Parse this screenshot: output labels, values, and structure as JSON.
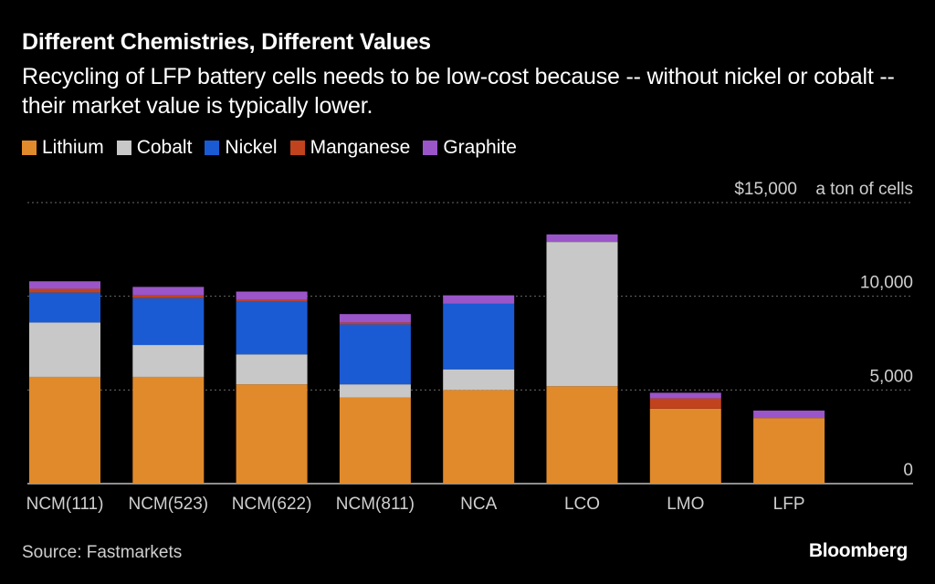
{
  "header": {
    "title": "Different Chemistries, Different Values",
    "subtitle": "Recycling of LFP battery cells needs to be low-cost because -- without nickel or cobalt -- their market value is typically lower."
  },
  "legend": [
    {
      "label": "Lithium",
      "color": "#e08a2c"
    },
    {
      "label": "Cobalt",
      "color": "#c8c8c8"
    },
    {
      "label": "Nickel",
      "color": "#1a5bd4"
    },
    {
      "label": "Manganese",
      "color": "#c0431e"
    },
    {
      "label": "Graphite",
      "color": "#9a55c8"
    }
  ],
  "chart_data": {
    "type": "bar",
    "stacked": true,
    "title": "Different Chemistries, Different Values",
    "unit_label": "a ton of cells",
    "categories": [
      "NCM(111)",
      "NCM(523)",
      "NCM(622)",
      "NCM(811)",
      "NCA",
      "LCO",
      "LMO",
      "LFP"
    ],
    "series": [
      {
        "name": "Lithium",
        "color": "#e08a2c",
        "values": [
          5700,
          5700,
          5300,
          4600,
          5000,
          5200,
          4000,
          3500
        ]
      },
      {
        "name": "Cobalt",
        "color": "#c8c8c8",
        "values": [
          2900,
          1700,
          1600,
          700,
          1100,
          7700,
          0,
          0
        ]
      },
      {
        "name": "Nickel",
        "color": "#1a5bd4",
        "values": [
          1600,
          2500,
          2800,
          3200,
          3500,
          0,
          0,
          0
        ]
      },
      {
        "name": "Manganese",
        "color": "#c0431e",
        "values": [
          200,
          150,
          100,
          100,
          0,
          0,
          550,
          0
        ]
      },
      {
        "name": "Graphite",
        "color": "#9a55c8",
        "values": [
          400,
          450,
          450,
          450,
          450,
          400,
          300,
          400
        ]
      }
    ],
    "y_ticks": [
      {
        "value": 15000,
        "label": "$15,000"
      },
      {
        "value": 10000,
        "label": "10,000"
      },
      {
        "value": 5000,
        "label": "5,000"
      },
      {
        "value": 0,
        "label": "0"
      }
    ],
    "ylim": [
      0,
      15000
    ],
    "grid": true,
    "legend_position": "top-left"
  },
  "footer": {
    "source": "Source: Fastmarkets",
    "brand": "Bloomberg"
  }
}
